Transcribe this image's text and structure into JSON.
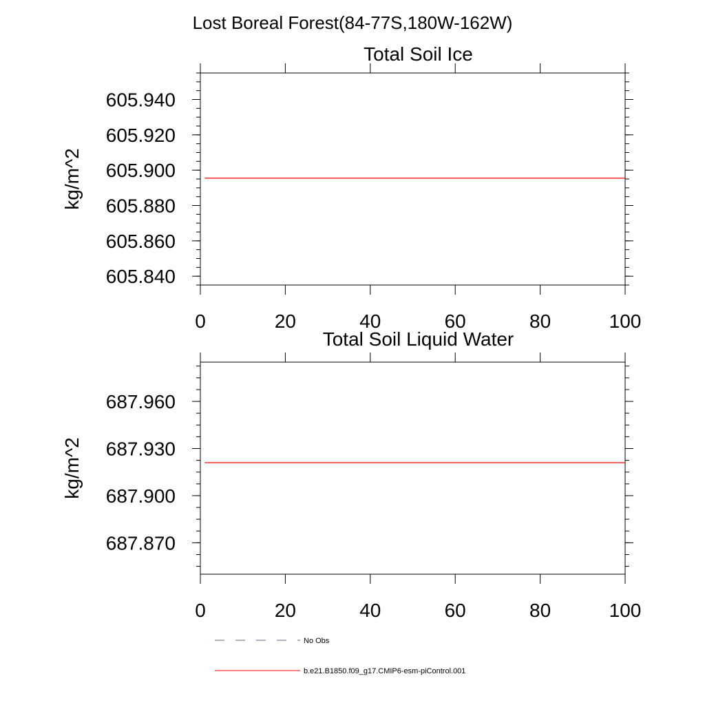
{
  "figure": {
    "title": "Lost Boreal Forest(84-77S,180W-162W)"
  },
  "chart_data": [
    {
      "type": "line",
      "title": "Total Soil Ice",
      "ylabel": "kg/m^2",
      "xlabel": "",
      "xlim": [
        0,
        100
      ],
      "ylim": [
        605.835,
        605.955
      ],
      "x_ticks": [
        0,
        20,
        40,
        60,
        80,
        100
      ],
      "y_ticks": [
        605.84,
        605.86,
        605.88,
        605.9,
        605.92,
        605.94
      ],
      "y_tick_labels": [
        "605.840",
        "605.860",
        "605.880",
        "605.900",
        "605.920",
        "605.940"
      ],
      "grid": false,
      "series": [
        {
          "name": "b.e21.B1850.f09_g17.CMIP6-esm-piControl.001",
          "color": "#ff0000",
          "x": [
            1,
            100
          ],
          "values": [
            605.8955,
            605.8955
          ]
        }
      ]
    },
    {
      "type": "line",
      "title": "Total Soil Liquid Water",
      "ylabel": "kg/m^2",
      "xlabel": "",
      "xlim": [
        0,
        100
      ],
      "ylim": [
        687.85,
        687.985
      ],
      "x_ticks": [
        0,
        20,
        40,
        60,
        80,
        100
      ],
      "y_ticks": [
        687.87,
        687.9,
        687.93,
        687.96
      ],
      "y_tick_labels": [
        "687.870",
        "687.900",
        "687.930",
        "687.960"
      ],
      "grid": false,
      "series": [
        {
          "name": "b.e21.B1850.f09_g17.CMIP6-esm-piControl.001",
          "color": "#ff0000",
          "x": [
            1,
            100
          ],
          "values": [
            687.921,
            687.921
          ]
        }
      ]
    }
  ],
  "legend": {
    "placement": "bottom-left",
    "items": [
      {
        "label": "No Obs",
        "color": "#5a6a8a",
        "style": "dashed"
      },
      {
        "label": "b.e21.B1850.f09_g17.CMIP6-esm-piControl.001",
        "color": "#ff0000",
        "style": "solid"
      }
    ]
  }
}
